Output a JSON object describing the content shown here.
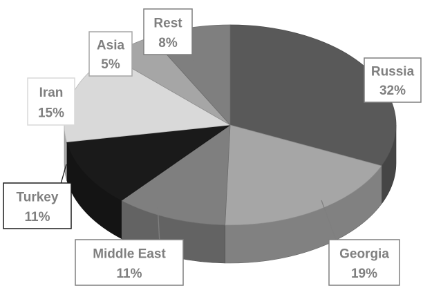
{
  "chart_data": {
    "type": "pie",
    "style": "3d",
    "title": "",
    "categories": [
      "Russia",
      "Georgia",
      "Middle East",
      "Turkey",
      "Iran",
      "Asia",
      "Rest"
    ],
    "values": [
      32,
      19,
      11,
      11,
      15,
      5,
      8
    ],
    "value_labels": [
      "32%",
      "19%",
      "11%",
      "11%",
      "15%",
      "5%",
      "8%"
    ],
    "colors": [
      "#595959",
      "#a6a6a6",
      "#7f7f7f",
      "#1a1a1a",
      "#d9d9d9",
      "#a6a6a6",
      "#7f7f7f"
    ],
    "legend": "none",
    "label_border_colors": [
      "#7f7f7f",
      "#7f7f7f",
      "#7f7f7f",
      "#1a1a1a",
      "#d9d9d9",
      "#a6a6a6",
      "#7f7f7f"
    ],
    "label_text_color": "#7f7f7f"
  }
}
